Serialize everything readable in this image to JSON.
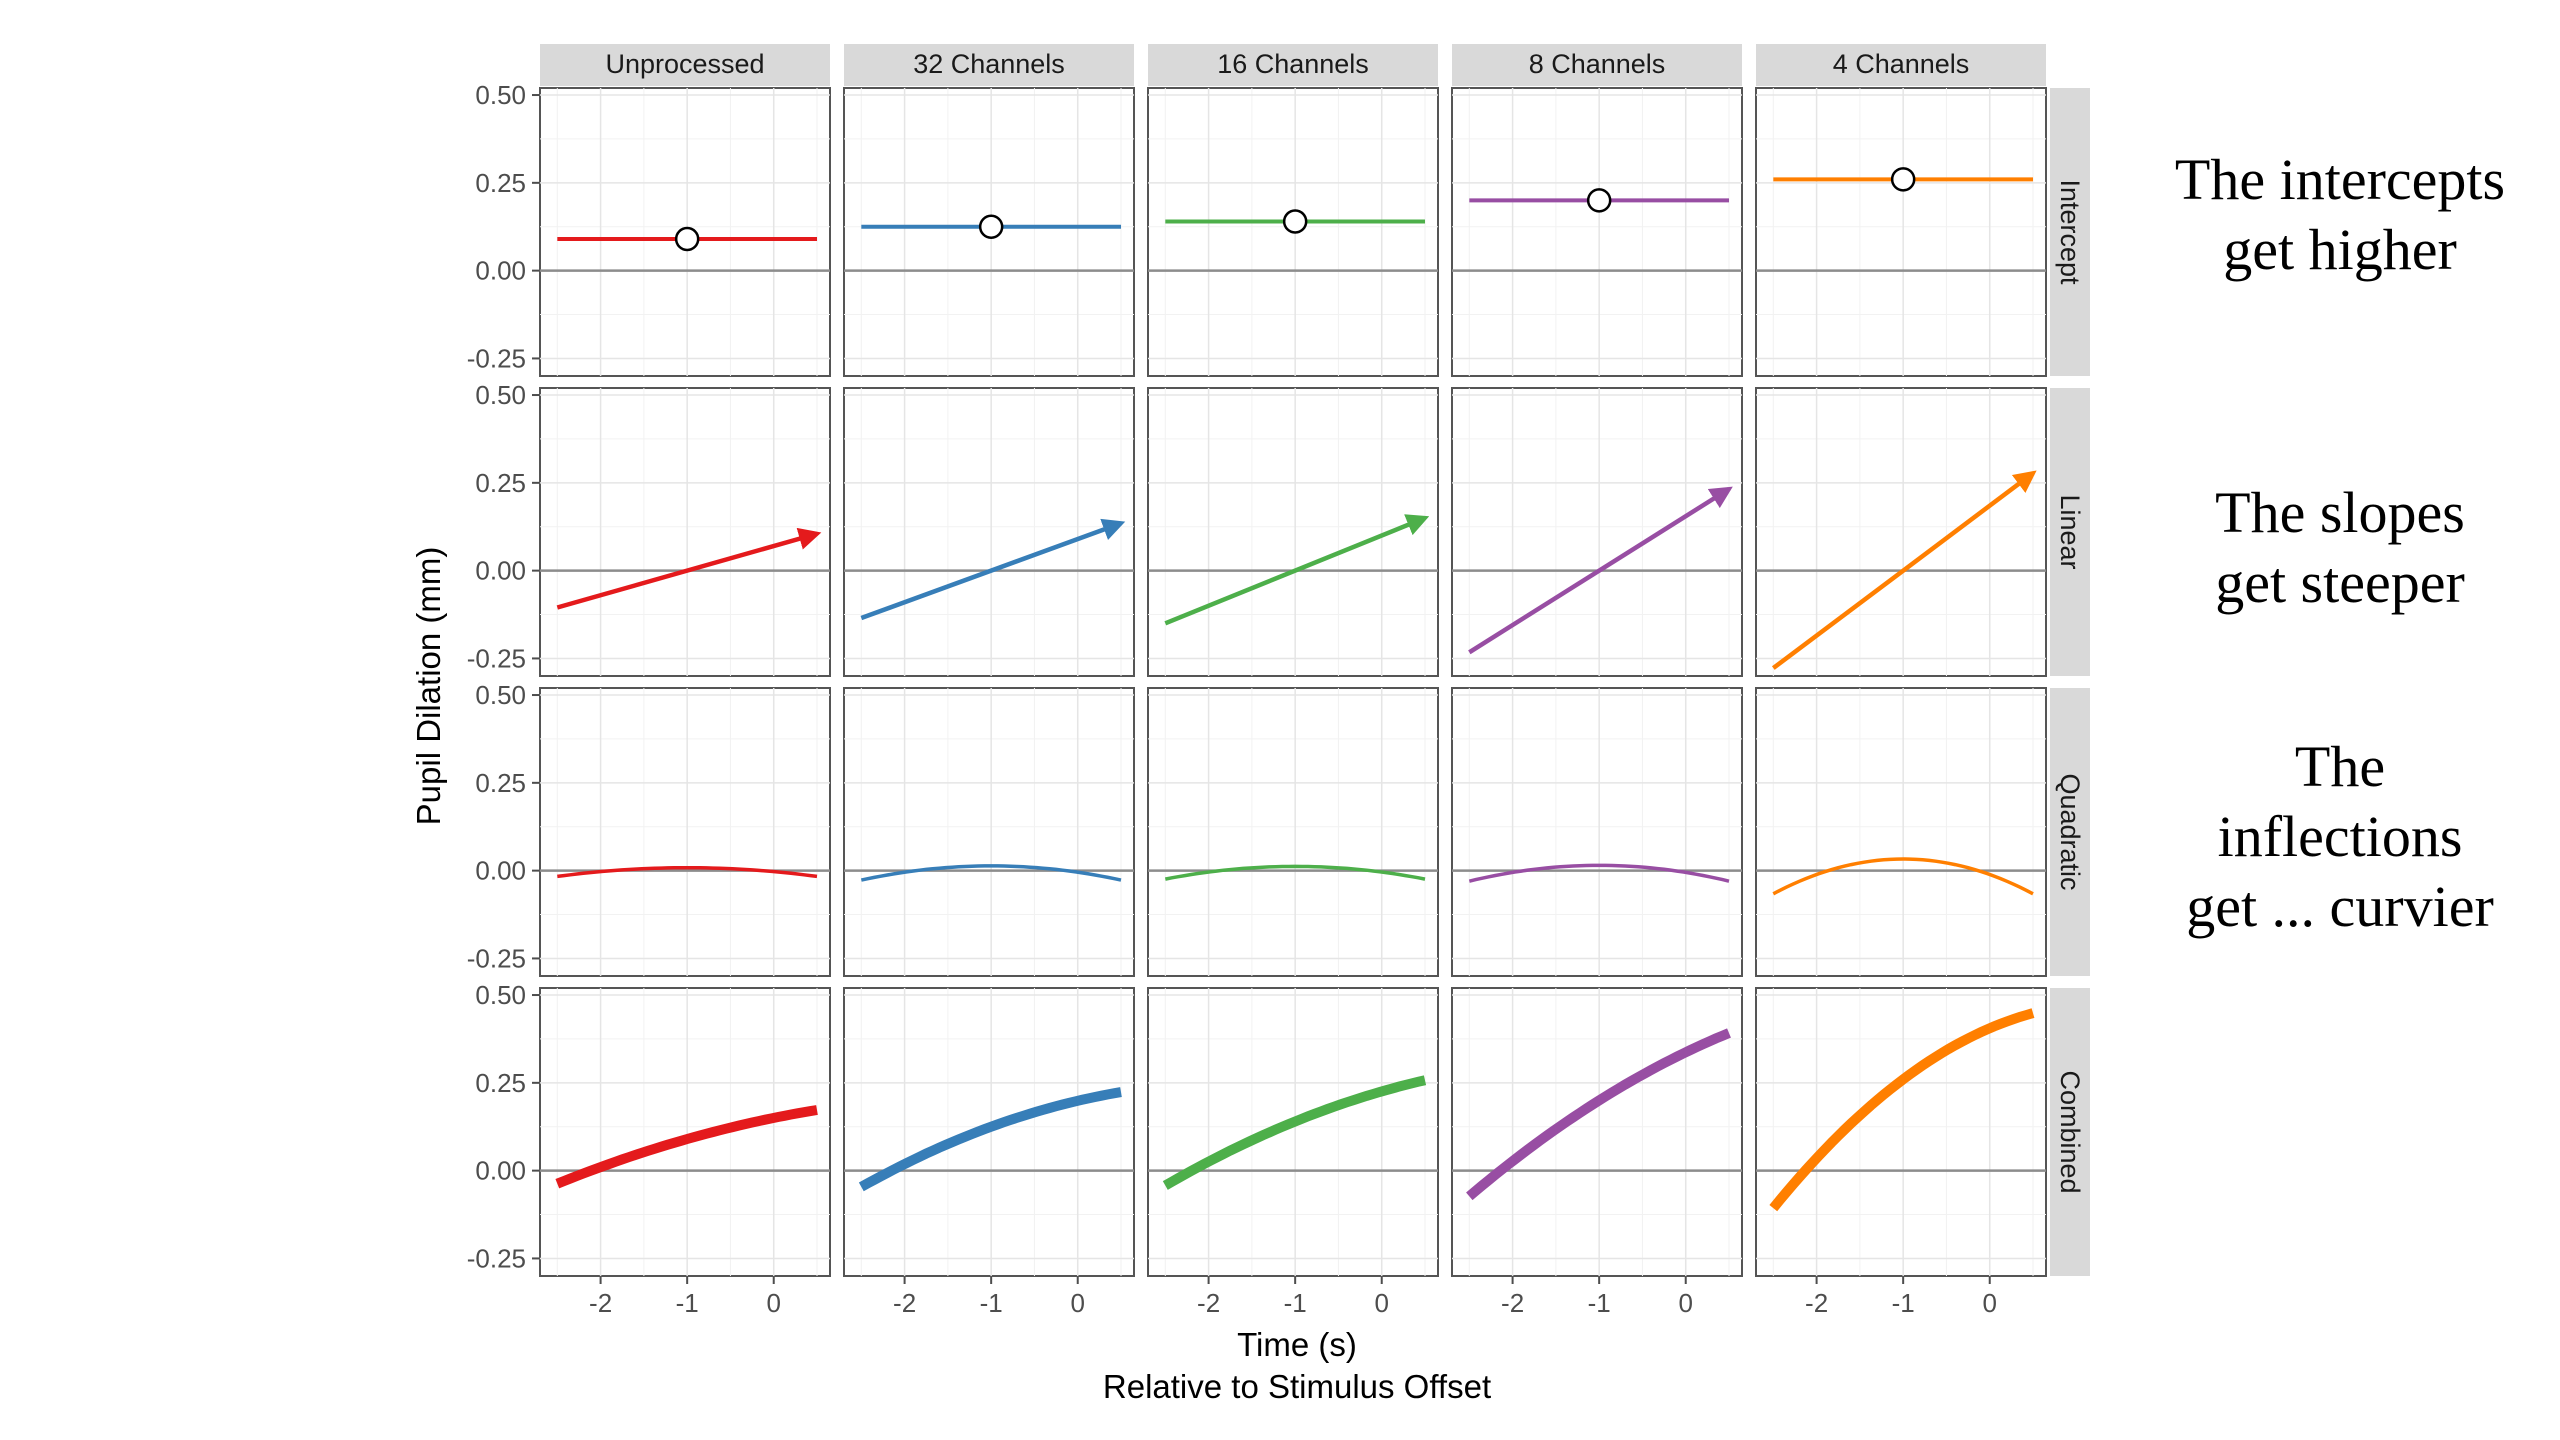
{
  "chart_data": {
    "type": "line",
    "columns": [
      "Unprocessed",
      "32 Channels",
      "16 Channels",
      "8 Channels",
      "4 Channels"
    ],
    "rows": [
      "Intercept",
      "Linear",
      "Quadratic",
      "Combined"
    ],
    "colors": [
      "#e41a1c",
      "#377eb8",
      "#4daf4a",
      "#984ea3",
      "#ff7f00"
    ],
    "xlabel": "Time (s)",
    "xlabel_sub": "Relative to Stimulus Offset",
    "ylabel": "Pupil Dilation (mm)",
    "xlim": [
      -2.7,
      0.65
    ],
    "ylim": [
      -0.3,
      0.52
    ],
    "x_ticks": [
      -2,
      -1,
      0
    ],
    "x_tick_labels": [
      "-2",
      "-1",
      "0"
    ],
    "y_ticks": [
      0.5,
      0.25,
      0.0,
      -0.25
    ],
    "y_tick_labels": [
      "0.50",
      "0.25",
      "0.00",
      "-0.25"
    ],
    "x_range": [
      -2.5,
      0.5
    ],
    "center_x": -1.0,
    "intercepts": [
      0.09,
      0.125,
      0.14,
      0.2,
      0.26
    ],
    "slopes": [
      0.07,
      0.09,
      0.1,
      0.155,
      0.185
    ],
    "quadratic": [
      -0.011,
      -0.018,
      -0.016,
      -0.02,
      -0.044
    ],
    "intercept_point_shape": "open-circle",
    "linear_end_marker": "arrow",
    "grid": true,
    "zero_line": true,
    "legend": "none"
  },
  "annotations": [
    {
      "lines": [
        "The intercepts",
        "get higher"
      ]
    },
    {
      "lines": [
        "The slopes",
        "get steeper"
      ]
    },
    {
      "lines": [
        "The",
        "inflections",
        "get ... curvier"
      ]
    }
  ]
}
